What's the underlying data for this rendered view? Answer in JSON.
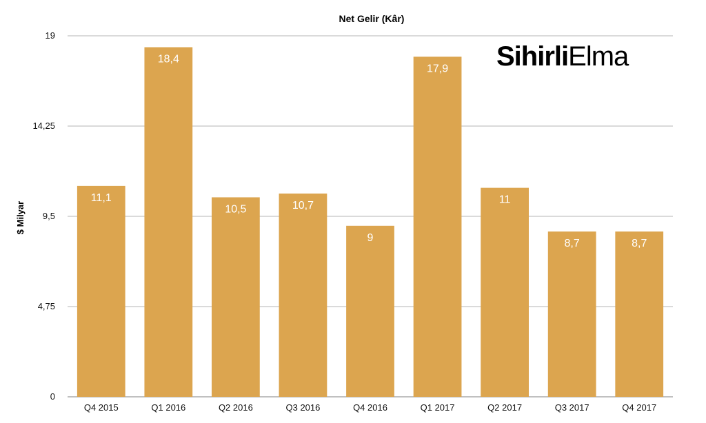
{
  "chart_data": {
    "type": "bar",
    "title": "Net Gelir (Kâr)",
    "ylabel": "$ Milyar",
    "xlabel": "",
    "categories": [
      "Q4 2015",
      "Q1 2016",
      "Q2 2016",
      "Q3 2016",
      "Q4 2016",
      "Q1 2017",
      "Q2 2017",
      "Q3 2017",
      "Q4 2017"
    ],
    "values": [
      11.1,
      18.4,
      10.5,
      10.7,
      9,
      17.9,
      11,
      8.7,
      8.7
    ],
    "data_labels": [
      "11,1",
      "18,4",
      "10,5",
      "10,7",
      "9",
      "17,9",
      "11",
      "8,7",
      "8,7"
    ],
    "ylim": [
      0,
      19
    ],
    "yticks": [
      0,
      4.75,
      9.5,
      14.25,
      19
    ],
    "ytick_labels": [
      "0",
      "4,75",
      "9,5",
      "14,25",
      "19"
    ],
    "grid": true,
    "legend": "none",
    "bar_color": "#dca54f"
  },
  "logo": {
    "bold_text": "Sihirli",
    "light_text": "Elma"
  }
}
